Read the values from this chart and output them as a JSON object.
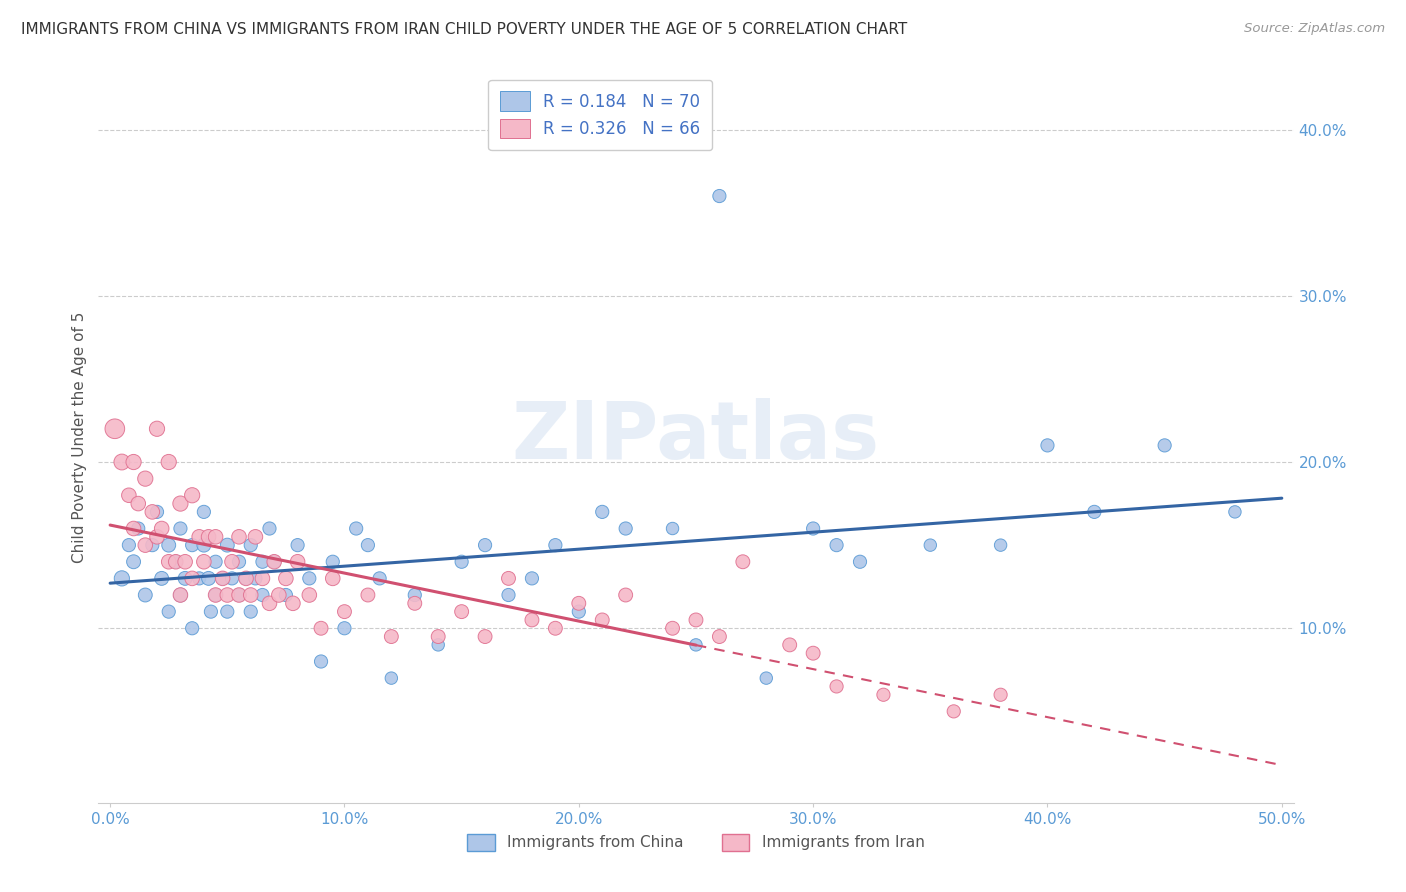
{
  "title": "IMMIGRANTS FROM CHINA VS IMMIGRANTS FROM IRAN CHILD POVERTY UNDER THE AGE OF 5 CORRELATION CHART",
  "source": "Source: ZipAtlas.com",
  "ylabel": "Child Poverty Under the Age of 5",
  "xlim": [
    -0.005,
    0.505
  ],
  "ylim": [
    -0.005,
    0.435
  ],
  "xticks": [
    0.0,
    0.1,
    0.2,
    0.3,
    0.4,
    0.5
  ],
  "xtick_labels": [
    "0.0%",
    "10.0%",
    "20.0%",
    "30.0%",
    "40.0%",
    "50.0%"
  ],
  "yticks": [
    0.1,
    0.2,
    0.3,
    0.4
  ],
  "ytick_labels": [
    "10.0%",
    "20.0%",
    "30.0%",
    "40.0%"
  ],
  "china_R": 0.184,
  "china_N": 70,
  "iran_R": 0.326,
  "iran_N": 66,
  "china_color": "#aec6e8",
  "iran_color": "#f5b8c8",
  "china_edge_color": "#5b9bd5",
  "iran_edge_color": "#e07090",
  "china_line_color": "#3465a4",
  "iran_line_color": "#d05070",
  "watermark": "ZIPatlas",
  "china_scatter_x": [
    0.005,
    0.008,
    0.01,
    0.012,
    0.015,
    0.018,
    0.02,
    0.022,
    0.025,
    0.025,
    0.028,
    0.03,
    0.03,
    0.032,
    0.035,
    0.035,
    0.038,
    0.04,
    0.04,
    0.042,
    0.043,
    0.045,
    0.045,
    0.048,
    0.05,
    0.05,
    0.052,
    0.055,
    0.055,
    0.058,
    0.06,
    0.06,
    0.062,
    0.065,
    0.065,
    0.068,
    0.07,
    0.075,
    0.08,
    0.085,
    0.09,
    0.095,
    0.1,
    0.105,
    0.11,
    0.115,
    0.12,
    0.13,
    0.14,
    0.15,
    0.16,
    0.17,
    0.18,
    0.19,
    0.2,
    0.21,
    0.22,
    0.24,
    0.25,
    0.26,
    0.28,
    0.3,
    0.31,
    0.32,
    0.35,
    0.38,
    0.4,
    0.42,
    0.45,
    0.48
  ],
  "china_scatter_y": [
    0.13,
    0.15,
    0.14,
    0.16,
    0.12,
    0.15,
    0.17,
    0.13,
    0.11,
    0.15,
    0.14,
    0.12,
    0.16,
    0.13,
    0.1,
    0.15,
    0.13,
    0.15,
    0.17,
    0.13,
    0.11,
    0.12,
    0.14,
    0.13,
    0.11,
    0.15,
    0.13,
    0.12,
    0.14,
    0.13,
    0.11,
    0.15,
    0.13,
    0.12,
    0.14,
    0.16,
    0.14,
    0.12,
    0.15,
    0.13,
    0.08,
    0.14,
    0.1,
    0.16,
    0.15,
    0.13,
    0.07,
    0.12,
    0.09,
    0.14,
    0.15,
    0.12,
    0.13,
    0.15,
    0.11,
    0.17,
    0.16,
    0.16,
    0.09,
    0.36,
    0.07,
    0.16,
    0.15,
    0.14,
    0.15,
    0.15,
    0.21,
    0.17,
    0.21,
    0.17
  ],
  "china_scatter_size": [
    120,
    90,
    100,
    90,
    100,
    90,
    90,
    100,
    90,
    100,
    90,
    100,
    90,
    100,
    90,
    90,
    90,
    100,
    90,
    100,
    90,
    90,
    90,
    90,
    90,
    100,
    90,
    90,
    90,
    90,
    90,
    90,
    90,
    90,
    90,
    90,
    90,
    90,
    90,
    90,
    90,
    90,
    90,
    90,
    90,
    90,
    80,
    90,
    80,
    90,
    90,
    90,
    90,
    90,
    90,
    90,
    90,
    80,
    80,
    90,
    80,
    90,
    90,
    90,
    80,
    80,
    90,
    90,
    90,
    80
  ],
  "iran_scatter_x": [
    0.002,
    0.005,
    0.008,
    0.01,
    0.01,
    0.012,
    0.015,
    0.015,
    0.018,
    0.02,
    0.02,
    0.022,
    0.025,
    0.025,
    0.028,
    0.03,
    0.03,
    0.032,
    0.035,
    0.035,
    0.038,
    0.04,
    0.042,
    0.045,
    0.045,
    0.048,
    0.05,
    0.052,
    0.055,
    0.055,
    0.058,
    0.06,
    0.062,
    0.065,
    0.068,
    0.07,
    0.072,
    0.075,
    0.078,
    0.08,
    0.085,
    0.09,
    0.095,
    0.1,
    0.11,
    0.12,
    0.13,
    0.14,
    0.15,
    0.16,
    0.17,
    0.18,
    0.19,
    0.2,
    0.21,
    0.22,
    0.24,
    0.25,
    0.26,
    0.27,
    0.29,
    0.3,
    0.31,
    0.33,
    0.36,
    0.38
  ],
  "iran_scatter_y": [
    0.22,
    0.2,
    0.18,
    0.16,
    0.2,
    0.175,
    0.15,
    0.19,
    0.17,
    0.155,
    0.22,
    0.16,
    0.14,
    0.2,
    0.14,
    0.12,
    0.175,
    0.14,
    0.13,
    0.18,
    0.155,
    0.14,
    0.155,
    0.12,
    0.155,
    0.13,
    0.12,
    0.14,
    0.12,
    0.155,
    0.13,
    0.12,
    0.155,
    0.13,
    0.115,
    0.14,
    0.12,
    0.13,
    0.115,
    0.14,
    0.12,
    0.1,
    0.13,
    0.11,
    0.12,
    0.095,
    0.115,
    0.095,
    0.11,
    0.095,
    0.13,
    0.105,
    0.1,
    0.115,
    0.105,
    0.12,
    0.1,
    0.105,
    0.095,
    0.14,
    0.09,
    0.085,
    0.065,
    0.06,
    0.05,
    0.06
  ],
  "iran_scatter_size": [
    200,
    130,
    110,
    110,
    120,
    110,
    110,
    120,
    110,
    110,
    120,
    110,
    110,
    120,
    110,
    110,
    120,
    110,
    110,
    120,
    110,
    110,
    110,
    110,
    110,
    110,
    110,
    110,
    110,
    110,
    110,
    110,
    110,
    110,
    110,
    110,
    110,
    110,
    110,
    110,
    110,
    100,
    110,
    100,
    100,
    100,
    100,
    100,
    100,
    100,
    100,
    100,
    100,
    100,
    100,
    100,
    100,
    100,
    100,
    100,
    100,
    100,
    90,
    90,
    90,
    90
  ]
}
